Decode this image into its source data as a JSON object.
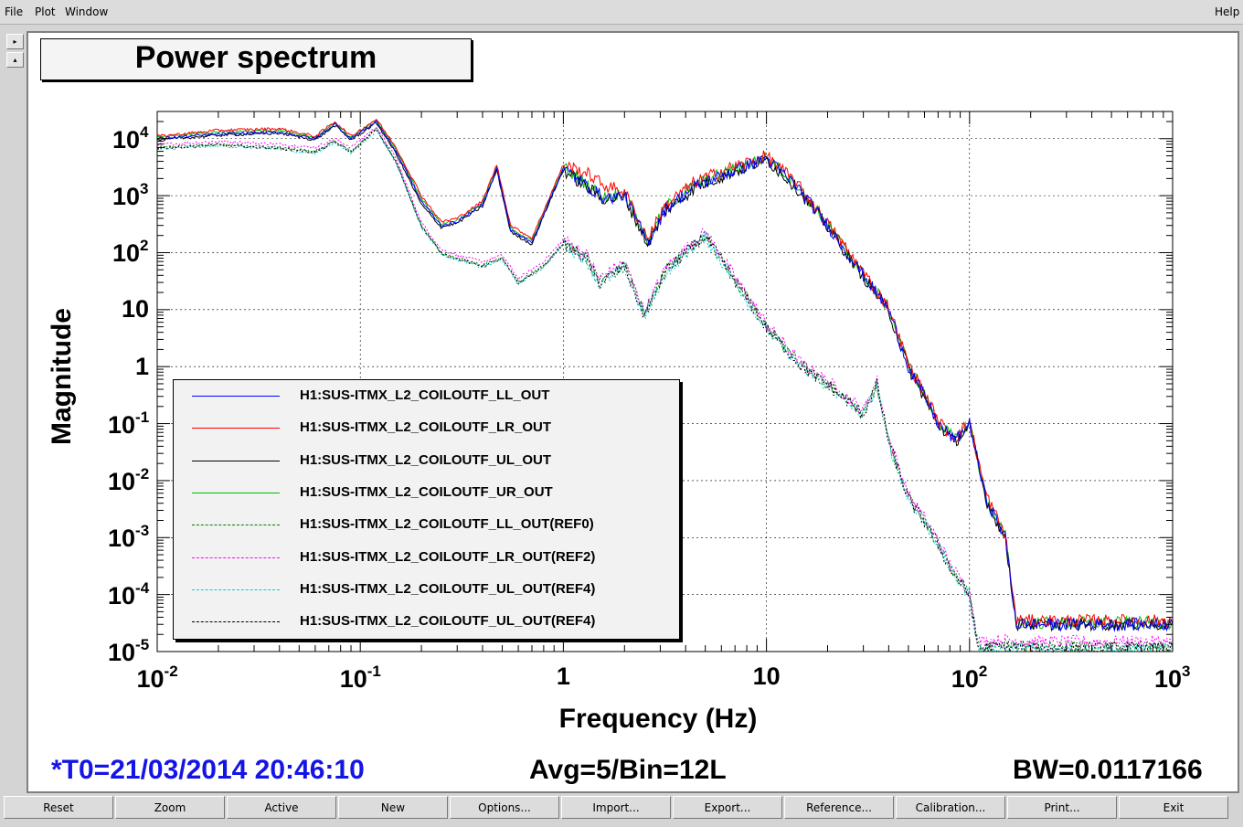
{
  "menu": {
    "file": "File",
    "plot": "Plot",
    "window": "Window",
    "help": "Help"
  },
  "side_buttons": {
    "up": "▸",
    "down": "▴"
  },
  "title": "Power spectrum",
  "chart_data": {
    "type": "line",
    "xlabel": "Frequency (Hz)",
    "ylabel": "Magnitude",
    "xscale": "log",
    "yscale": "log",
    "xlim": [
      0.01,
      1000
    ],
    "ylim": [
      1e-05,
      30000
    ],
    "grid": true,
    "legend_position": "bottom-left",
    "x_ticks": [
      "10^-2",
      "10^-1",
      "1",
      "10",
      "10^2",
      "10^3"
    ],
    "y_ticks": [
      "10^4",
      "10^3",
      "10^2",
      "10",
      "1",
      "10^-1",
      "10^-2",
      "10^-3",
      "10^-4",
      "10^-5"
    ],
    "series": [
      {
        "name": "H1:SUS-ITMX_L2_COILOUTF_LL_OUT",
        "color": "#0000ff",
        "style": "solid",
        "x": [
          0.01,
          0.02,
          0.04,
          0.06,
          0.075,
          0.09,
          0.12,
          0.15,
          0.2,
          0.25,
          0.3,
          0.4,
          0.47,
          0.55,
          0.7,
          0.85,
          1.0,
          1.3,
          1.6,
          2.0,
          2.6,
          3.2,
          4.5,
          6.5,
          10,
          14,
          20,
          30,
          40,
          50,
          60,
          70,
          85,
          100,
          120,
          150,
          170,
          200,
          300,
          500,
          800,
          1000
        ],
        "y": [
          10000,
          12000,
          13000,
          10000,
          18000,
          10000,
          20000,
          6000,
          800,
          300,
          350,
          700,
          3000,
          250,
          150,
          800,
          3000,
          1500,
          900,
          1000,
          150,
          600,
          1500,
          2500,
          4500,
          1500,
          300,
          40,
          10,
          1,
          0.3,
          0.1,
          0.05,
          0.1,
          0.005,
          0.001,
          3e-05,
          3e-05,
          3e-05,
          3e-05,
          3e-05,
          3e-05
        ]
      },
      {
        "name": "H1:SUS-ITMX_L2_COILOUTF_LR_OUT",
        "color": "#ff0000",
        "style": "solid",
        "x": [
          0.01,
          0.02,
          0.04,
          0.06,
          0.075,
          0.09,
          0.12,
          0.15,
          0.2,
          0.25,
          0.3,
          0.4,
          0.47,
          0.55,
          0.7,
          0.85,
          1.0,
          1.3,
          1.6,
          2.0,
          2.6,
          3.2,
          4.5,
          6.5,
          10,
          14,
          20,
          30,
          40,
          50,
          60,
          70,
          85,
          100,
          120,
          150,
          170,
          200,
          300,
          500,
          800,
          1000
        ],
        "y": [
          11000,
          14000,
          15000,
          11000,
          20000,
          11000,
          22000,
          7000,
          1000,
          350,
          400,
          800,
          3500,
          300,
          180,
          900,
          3500,
          2500,
          1500,
          1200,
          180,
          700,
          1800,
          3000,
          5000,
          1700,
          330,
          45,
          11,
          1.1,
          0.35,
          0.11,
          0.055,
          0.11,
          0.006,
          0.0011,
          3.5e-05,
          3.5e-05,
          3.5e-05,
          3.5e-05,
          3.5e-05,
          3.5e-05
        ]
      },
      {
        "name": "H1:SUS-ITMX_L2_COILOUTF_UL_OUT",
        "color": "#000000",
        "style": "solid",
        "x": [
          0.01,
          0.02,
          0.04,
          0.06,
          0.075,
          0.09,
          0.12,
          0.15,
          0.2,
          0.25,
          0.3,
          0.4,
          0.47,
          0.55,
          0.7,
          0.85,
          1.0,
          1.3,
          1.6,
          2.0,
          2.6,
          3.2,
          4.5,
          6.5,
          10,
          14,
          20,
          30,
          40,
          50,
          60,
          70,
          85,
          100,
          120,
          150,
          170,
          200,
          300,
          500,
          800,
          1000
        ],
        "y": [
          9500,
          11500,
          12500,
          9500,
          17000,
          9500,
          19000,
          5500,
          700,
          280,
          330,
          650,
          2800,
          230,
          140,
          750,
          2800,
          1400,
          850,
          950,
          140,
          550,
          1400,
          2400,
          4300,
          1400,
          280,
          38,
          9.5,
          0.95,
          0.28,
          0.095,
          0.048,
          0.095,
          0.0048,
          0.00095,
          3e-05,
          3e-05,
          3e-05,
          3e-05,
          3e-05,
          3e-05
        ]
      },
      {
        "name": "H1:SUS-ITMX_L2_COILOUTF_UR_OUT",
        "color": "#00c000",
        "style": "solid",
        "x": [
          0.01,
          0.02,
          0.04,
          0.06,
          0.075,
          0.09,
          0.12,
          0.15,
          0.2,
          0.25,
          0.3,
          0.4,
          0.47,
          0.55,
          0.7,
          0.85,
          1.0,
          1.3,
          1.6,
          2.0,
          2.6,
          3.2,
          4.5,
          6.5,
          10,
          14,
          20,
          30,
          40,
          50,
          60,
          70,
          85,
          100,
          120,
          150,
          170,
          200,
          300,
          500,
          800,
          1000
        ],
        "y": [
          10500,
          13000,
          14000,
          10500,
          19000,
          10500,
          21000,
          6500,
          900,
          320,
          370,
          750,
          3200,
          270,
          160,
          850,
          3200,
          1600,
          950,
          1100,
          160,
          650,
          1600,
          2700,
          4700,
          1600,
          310,
          42,
          10.5,
          1.05,
          0.32,
          0.105,
          0.052,
          0.105,
          0.0052,
          0.00105,
          3.2e-05,
          3.2e-05,
          3.2e-05,
          3.2e-05,
          3.2e-05,
          3.2e-05
        ]
      },
      {
        "name": "H1:SUS-ITMX_L2_COILOUTF_LL_OUT(REF0)",
        "color": "#008000",
        "style": "dashed",
        "x": [
          0.01,
          0.02,
          0.04,
          0.06,
          0.075,
          0.09,
          0.12,
          0.15,
          0.2,
          0.25,
          0.3,
          0.4,
          0.5,
          0.6,
          0.8,
          1.0,
          1.3,
          1.5,
          2.0,
          2.5,
          3.2,
          4.5,
          5,
          6.5,
          10,
          15,
          20,
          30,
          35,
          40,
          50,
          60,
          70,
          80,
          100,
          110,
          150,
          200,
          300,
          500,
          1000
        ],
        "y": [
          7000,
          8000,
          7000,
          6000,
          9000,
          6000,
          15000,
          4000,
          300,
          100,
          80,
          60,
          80,
          30,
          60,
          150,
          80,
          30,
          60,
          8,
          50,
          150,
          200,
          50,
          5,
          1,
          0.5,
          0.15,
          0.5,
          0.05,
          0.005,
          0.002,
          0.0008,
          0.0003,
          0.0001,
          1.2e-05,
          1.3e-05,
          1.2e-05,
          1.2e-05,
          1.2e-05,
          1.2e-05
        ]
      },
      {
        "name": "H1:SUS-ITMX_L2_COILOUTF_LR_OUT(REF2)",
        "color": "#ff00ff",
        "style": "dashed",
        "x": [
          0.01,
          0.02,
          0.04,
          0.06,
          0.075,
          0.09,
          0.12,
          0.15,
          0.2,
          0.25,
          0.3,
          0.4,
          0.5,
          0.6,
          0.8,
          1.0,
          1.3,
          1.5,
          2.0,
          2.5,
          3.2,
          4.5,
          5,
          6.5,
          10,
          15,
          20,
          30,
          35,
          40,
          50,
          60,
          70,
          80,
          100,
          110,
          150,
          200,
          300,
          500,
          1000
        ],
        "y": [
          7800,
          9000,
          8000,
          7000,
          10000,
          7000,
          16000,
          4500,
          340,
          115,
          90,
          70,
          90,
          35,
          70,
          170,
          90,
          35,
          70,
          9,
          55,
          170,
          230,
          55,
          5.6,
          1.1,
          0.56,
          0.17,
          0.56,
          0.056,
          0.0056,
          0.0022,
          0.0009,
          0.00034,
          0.00011,
          1.5e-05,
          1.6e-05,
          1.5e-05,
          1.5e-05,
          1.5e-05,
          1.5e-05
        ]
      },
      {
        "name": "H1:SUS-ITMX_L2_COILOUTF_UL_OUT(REF4)",
        "color": "#00d0d0",
        "style": "dashed",
        "x": [
          0.01,
          0.02,
          0.04,
          0.06,
          0.075,
          0.09,
          0.12,
          0.15,
          0.2,
          0.25,
          0.3,
          0.4,
          0.5,
          0.6,
          0.8,
          1.0,
          1.3,
          1.5,
          2.0,
          2.5,
          3.2,
          4.5,
          5,
          6.5,
          10,
          15,
          20,
          30,
          35,
          40,
          50,
          60,
          70,
          80,
          100,
          110,
          150,
          200,
          300,
          500,
          1000
        ],
        "y": [
          6500,
          7500,
          6500,
          5500,
          8500,
          5500,
          14000,
          3800,
          280,
          95,
          75,
          55,
          75,
          28,
          55,
          140,
          75,
          28,
          55,
          7.5,
          45,
          140,
          190,
          45,
          4.6,
          0.95,
          0.46,
          0.14,
          0.46,
          0.046,
          0.0046,
          0.0019,
          0.00075,
          0.00028,
          9.5e-05,
          1.1e-05,
          1.2e-05,
          1.1e-05,
          1.1e-05,
          1.1e-05,
          1.1e-05
        ]
      },
      {
        "name": "H1:SUS-ITMX_L2_COILOUTF_UL_OUT(REF4)",
        "color": "#000000",
        "style": "dashed",
        "x": [
          0.01,
          0.02,
          0.04,
          0.06,
          0.075,
          0.09,
          0.12,
          0.15,
          0.2,
          0.25,
          0.3,
          0.4,
          0.5,
          0.6,
          0.8,
          1.0,
          1.3,
          1.5,
          2.0,
          2.5,
          3.2,
          4.5,
          5,
          6.5,
          10,
          15,
          20,
          30,
          35,
          40,
          50,
          60,
          70,
          80,
          100,
          110,
          150,
          200,
          300,
          500,
          1000
        ],
        "y": [
          6800,
          7700,
          6800,
          5800,
          8800,
          5800,
          14500,
          3900,
          290,
          98,
          78,
          58,
          78,
          29,
          58,
          145,
          78,
          29,
          58,
          7.8,
          48,
          145,
          195,
          48,
          4.8,
          0.98,
          0.48,
          0.145,
          0.48,
          0.048,
          0.0048,
          0.0019,
          0.00078,
          0.00029,
          9.8e-05,
          1.15e-05,
          1.25e-05,
          1.15e-05,
          1.15e-05,
          1.15e-05,
          1.15e-05
        ]
      }
    ]
  },
  "status": {
    "t0": "*T0=21/03/2014 20:46:10",
    "avg": "Avg=5/Bin=12L",
    "bw": "BW=0.0117166"
  },
  "buttons": [
    "Reset",
    "Zoom",
    "Active",
    "New",
    "Options...",
    "Import...",
    "Export...",
    "Reference...",
    "Calibration...",
    "Print...",
    "Exit"
  ]
}
